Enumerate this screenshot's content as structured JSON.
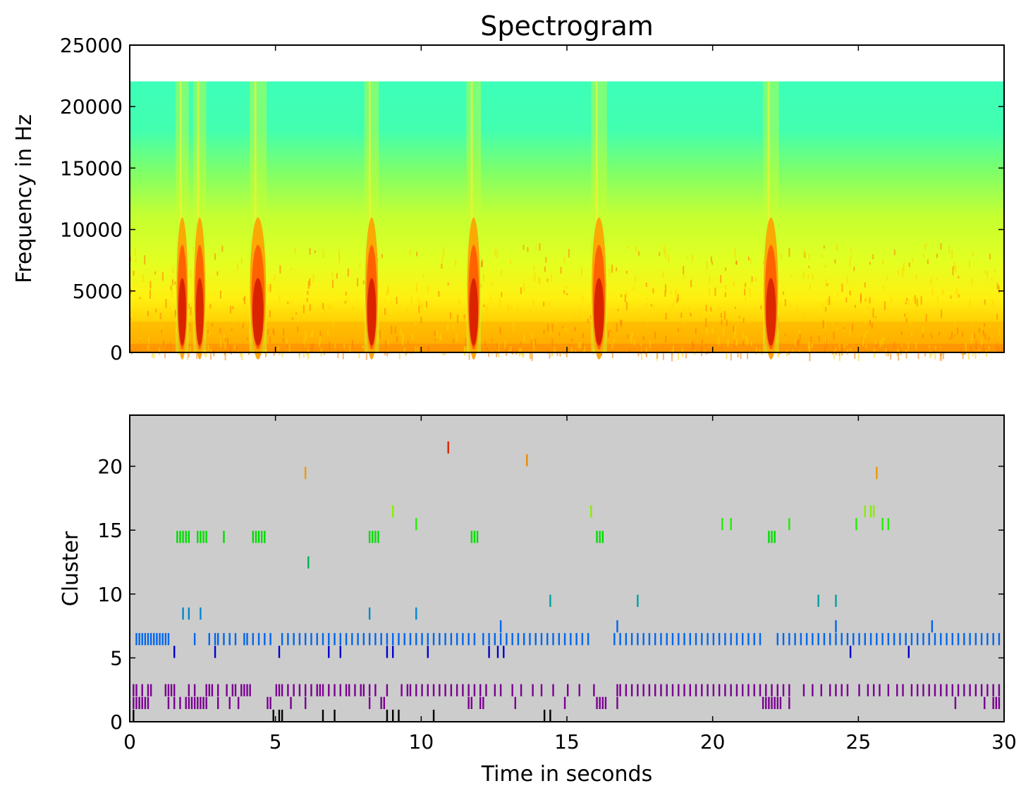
{
  "chart_data": [
    {
      "type": "heatmap",
      "name": "spectrogram",
      "title": "Spectrogram",
      "xlabel": "",
      "ylabel": "Frequency in Hz",
      "xlim": [
        0,
        30
      ],
      "ylim": [
        0,
        25000
      ],
      "xticks": [
        0,
        5,
        10,
        15,
        20,
        25,
        30
      ],
      "yticks": [
        0,
        5000,
        10000,
        15000,
        20000,
        25000
      ],
      "ytick_labels": [
        "0",
        "5000",
        "10000",
        "15000",
        "20000",
        "25000"
      ],
      "max_frequency_hz": 22050,
      "grid": false,
      "colormap": [
        "#3dffb9",
        "#7dff6a",
        "#d9ff2a",
        "#ffee10",
        "#ffb400",
        "#ff6000",
        "#d41a00"
      ],
      "vocal_events_seconds": [
        {
          "center": 1.8,
          "width": 0.35,
          "intensity": 1.0
        },
        {
          "center": 2.4,
          "width": 0.35,
          "intensity": 0.95
        },
        {
          "center": 4.4,
          "width": 0.5,
          "intensity": 1.0
        },
        {
          "center": 8.3,
          "width": 0.4,
          "intensity": 1.0
        },
        {
          "center": 11.8,
          "width": 0.4,
          "intensity": 1.0
        },
        {
          "center": 16.1,
          "width": 0.45,
          "intensity": 1.0
        },
        {
          "center": 22.0,
          "width": 0.45,
          "intensity": 0.95
        }
      ]
    },
    {
      "type": "scatter",
      "name": "cluster-raster",
      "title": "",
      "xlabel": "Time in seconds",
      "ylabel": "Cluster",
      "xlim": [
        0,
        30
      ],
      "ylim": [
        0,
        24
      ],
      "xticks": [
        0,
        5,
        10,
        15,
        20,
        25,
        30
      ],
      "xtick_labels": [
        "0",
        "5",
        "10",
        "15",
        "20",
        "25",
        "30"
      ],
      "yticks": [
        0,
        5,
        10,
        15,
        20
      ],
      "ytick_labels": [
        "0",
        "5",
        "10",
        "15",
        "20"
      ],
      "background": "#cccccc",
      "grid": false,
      "series": [
        {
          "cluster": 0,
          "color": "#000000",
          "times": [
            0.1,
            4.9,
            5.1,
            5.2,
            6.6,
            7.0,
            8.8,
            9.0,
            9.2,
            10.4,
            14.2,
            14.4
          ]
        },
        {
          "cluster": 1,
          "color": "#7a0091",
          "times": [
            0.1,
            0.2,
            0.3,
            0.4,
            0.5,
            0.6,
            1.3,
            1.5,
            1.7,
            1.9,
            2.0,
            2.1,
            2.2,
            2.3,
            2.4,
            2.5,
            2.6,
            3.0,
            3.4,
            3.7,
            4.7,
            4.8,
            5.5,
            6.0,
            8.2,
            8.6,
            8.7,
            11.6,
            11.7,
            12.0,
            12.1,
            13.2,
            14.9,
            16.0,
            16.1,
            16.2,
            16.3,
            16.7,
            21.7,
            21.8,
            21.9,
            22.0,
            22.1,
            22.2,
            22.3,
            22.6,
            28.3,
            29.3,
            29.6,
            29.7,
            29.8
          ]
        },
        {
          "cluster": 2,
          "color": "#7a0091",
          "times": [
            0.1,
            0.2,
            0.4,
            0.6,
            0.7,
            1.2,
            1.3,
            1.4,
            1.5,
            2.0,
            2.2,
            2.6,
            2.7,
            2.8,
            3.0,
            3.3,
            3.5,
            3.6,
            3.8,
            3.9,
            4.0,
            4.1,
            5.0,
            5.1,
            5.2,
            5.4,
            5.6,
            5.8,
            6.0,
            6.2,
            6.4,
            6.5,
            6.6,
            6.8,
            7.0,
            7.2,
            7.4,
            7.5,
            7.7,
            7.9,
            8.0,
            8.2,
            8.4,
            8.8,
            9.3,
            9.5,
            9.6,
            9.8,
            10.0,
            10.2,
            10.4,
            10.6,
            10.8,
            11.0,
            11.2,
            11.4,
            11.6,
            11.8,
            12.0,
            12.2,
            12.5,
            12.7,
            13.1,
            13.4,
            13.8,
            14.1,
            14.5,
            15.0,
            15.4,
            15.9,
            16.7,
            16.8,
            17.0,
            17.2,
            17.4,
            17.6,
            17.8,
            18.0,
            18.2,
            18.4,
            18.6,
            18.8,
            19.0,
            19.2,
            19.4,
            19.6,
            19.8,
            20.0,
            20.2,
            20.4,
            20.6,
            20.8,
            21.0,
            21.2,
            21.4,
            21.6,
            21.8,
            22.0,
            22.2,
            22.4,
            22.6,
            23.1,
            23.4,
            23.7,
            24.0,
            24.2,
            24.4,
            24.6,
            25.0,
            25.3,
            25.5,
            25.7,
            26.0,
            26.3,
            26.5,
            26.8,
            27.0,
            27.2,
            27.4,
            27.6,
            27.8,
            28.0,
            28.2,
            28.4,
            28.6,
            28.8,
            29.0,
            29.2,
            29.4,
            29.6,
            29.8
          ]
        },
        {
          "cluster": 5,
          "color": "#0000cc",
          "times": [
            1.5,
            2.9,
            5.1,
            6.8,
            7.2,
            8.8,
            9.0,
            10.2,
            12.3,
            12.6,
            12.8,
            24.7,
            26.7
          ]
        },
        {
          "cluster": 6,
          "color": "#0066ee",
          "times": [
            0.2,
            0.3,
            0.4,
            0.5,
            0.6,
            0.7,
            0.8,
            0.9,
            1.0,
            1.1,
            1.2,
            1.3,
            2.2,
            2.7,
            2.9,
            3.0,
            3.2,
            3.4,
            3.6,
            3.9,
            4.0,
            4.2,
            4.4,
            4.6,
            4.8,
            5.2,
            5.4,
            5.6,
            5.8,
            6.0,
            6.2,
            6.4,
            6.6,
            6.8,
            7.0,
            7.2,
            7.4,
            7.6,
            7.8,
            8.0,
            8.2,
            8.4,
            8.6,
            8.8,
            9.0,
            9.2,
            9.4,
            9.6,
            9.8,
            10.0,
            10.2,
            10.4,
            10.6,
            10.8,
            11.0,
            11.2,
            11.4,
            11.6,
            11.8,
            12.1,
            12.3,
            12.5,
            12.7,
            12.9,
            13.1,
            13.3,
            13.5,
            13.7,
            13.9,
            14.1,
            14.3,
            14.5,
            14.7,
            14.9,
            15.1,
            15.3,
            15.5,
            15.7,
            16.6,
            16.8,
            17.0,
            17.2,
            17.4,
            17.6,
            17.8,
            18.0,
            18.2,
            18.4,
            18.6,
            18.8,
            19.0,
            19.2,
            19.4,
            19.6,
            19.8,
            20.0,
            20.2,
            20.4,
            20.6,
            20.8,
            21.0,
            21.2,
            21.4,
            21.6,
            22.2,
            22.4,
            22.6,
            22.8,
            23.0,
            23.2,
            23.4,
            23.6,
            23.8,
            24.0,
            24.2,
            24.4,
            24.6,
            24.8,
            25.0,
            25.2,
            25.4,
            25.6,
            25.8,
            26.0,
            26.2,
            26.4,
            26.6,
            26.8,
            27.0,
            27.2,
            27.4,
            27.6,
            27.8,
            28.0,
            28.2,
            28.4,
            28.6,
            28.8,
            29.0,
            29.2,
            29.4,
            29.6,
            29.8
          ]
        },
        {
          "cluster": 7,
          "color": "#0066ee",
          "times": [
            12.7,
            16.7,
            24.2,
            27.5
          ]
        },
        {
          "cluster": 8,
          "color": "#0088cc",
          "times": [
            1.8,
            2.0,
            2.4,
            8.2,
            9.8
          ]
        },
        {
          "cluster": 9,
          "color": "#00a0a0",
          "times": [
            14.4,
            17.4,
            23.6,
            24.2
          ]
        },
        {
          "cluster": 12,
          "color": "#00b050",
          "times": [
            6.1
          ]
        },
        {
          "cluster": 14,
          "color": "#00dd00",
          "times": [
            1.6,
            1.7,
            1.8,
            1.9,
            2.0,
            2.3,
            2.4,
            2.5,
            2.6,
            3.2,
            4.2,
            4.3,
            4.4,
            4.5,
            4.6,
            8.2,
            8.3,
            8.4,
            8.5,
            11.7,
            11.8,
            11.9,
            16.0,
            16.1,
            16.2,
            21.9,
            22.0,
            22.1
          ]
        },
        {
          "cluster": 15,
          "color": "#22ee00",
          "times": [
            9.8,
            20.3,
            20.6,
            22.6,
            24.9,
            25.8,
            26.0
          ]
        },
        {
          "cluster": 16,
          "color": "#88ee00",
          "times": [
            9.0,
            15.8,
            25.2,
            25.4,
            25.5
          ]
        },
        {
          "cluster": 19,
          "color": "#ee9900",
          "times": [
            6.0,
            25.6
          ]
        },
        {
          "cluster": 20,
          "color": "#ee8800",
          "times": [
            13.6
          ]
        },
        {
          "cluster": 21,
          "color": "#dd2200",
          "times": [
            10.9
          ]
        }
      ]
    }
  ]
}
